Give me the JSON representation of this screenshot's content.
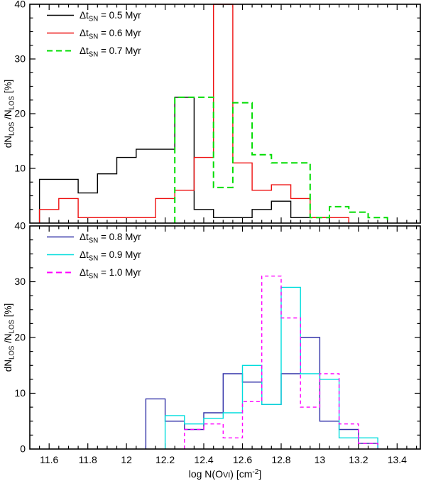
{
  "figure_background": "#ffffff",
  "chart_data": [
    {
      "type": "bar",
      "subtype": "step-histogram",
      "panel": "top",
      "grid": false,
      "legend_position": "top-left-inside",
      "xlim": [
        11.5,
        13.52
      ],
      "ylim": [
        0,
        40
      ],
      "xticks_major": [
        11.6,
        11.8,
        12.0,
        12.2,
        12.4,
        12.6,
        12.8,
        13.0,
        13.2,
        13.4
      ],
      "xtick_labels": [],
      "xtick_minor_step": 0.05,
      "ytick_values": [
        10,
        20,
        30,
        40
      ],
      "ytick_labels": [
        "10",
        "20",
        "30",
        "40"
      ],
      "ytick_minor_step": 2.5,
      "ylabel_parts": [
        {
          "t": "dN"
        },
        {
          "t": "LOS",
          "sub": true
        },
        {
          "t": " /N"
        },
        {
          "t": "LOS",
          "sub": true
        },
        {
          "t": " [%]"
        }
      ],
      "legend": [
        {
          "series_id": "dtsn-0.5",
          "label_text": "Δt_SN = 0.5 Myr",
          "label_parts": [
            {
              "t": "Δt"
            },
            {
              "t": "SN",
              "sub": true
            },
            {
              "t": " = 0.5 Myr"
            }
          ],
          "color": "#000000",
          "style": "solid"
        },
        {
          "series_id": "dtsn-0.6",
          "label_text": "Δt_SN = 0.6 Myr",
          "label_parts": [
            {
              "t": "Δt"
            },
            {
              "t": "SN",
              "sub": true
            },
            {
              "t": " = 0.6 Myr"
            }
          ],
          "color": "#ee1111",
          "style": "solid"
        },
        {
          "series_id": "dtsn-0.7",
          "label_text": "Δt_SN = 0.7 Myr",
          "label_parts": [
            {
              "t": "Δt"
            },
            {
              "t": "SN",
              "sub": true
            },
            {
              "t": " = 0.7 Myr"
            }
          ],
          "color": "#00dd00",
          "style": "dashed"
        }
      ],
      "series": [
        {
          "id": "dtsn-0.5",
          "name": "Δt_SN = 0.5 Myr",
          "color": "#000000",
          "style": "solid",
          "thickness": 1.4,
          "dash": null,
          "bin_start": 11.55,
          "bin_width": 0.1,
          "values": [
            8,
            8,
            5.5,
            9,
            12,
            13.5,
            13.5,
            23,
            2.5,
            1,
            1,
            2.5,
            4,
            1,
            1
          ]
        },
        {
          "id": "dtsn-0.6",
          "name": "Δt_SN = 0.6 Myr",
          "color": "#ee1111",
          "style": "solid",
          "thickness": 1.4,
          "dash": null,
          "bin_start": 11.55,
          "bin_width": 0.1,
          "values": [
            2.5,
            4.5,
            1,
            1,
            1,
            1,
            4.5,
            6,
            12,
            40,
            11,
            6,
            7,
            4.5,
            1,
            1
          ]
        },
        {
          "id": "dtsn-0.7",
          "name": "Δt_SN = 0.7 Myr",
          "color": "#00dd00",
          "style": "dashed",
          "thickness": 2.0,
          "dash": "9,5",
          "bin_start": 12.25,
          "bin_width": 0.1,
          "values": [
            23,
            23,
            6.5,
            22,
            12.5,
            11,
            11,
            1,
            3,
            2,
            1
          ]
        }
      ]
    },
    {
      "type": "bar",
      "subtype": "step-histogram",
      "panel": "bottom",
      "grid": false,
      "legend_position": "top-left-inside",
      "xlim": [
        11.5,
        13.52
      ],
      "ylim": [
        0,
        40
      ],
      "xticks_major": [
        11.6,
        11.8,
        12.0,
        12.2,
        12.4,
        12.6,
        12.8,
        13.0,
        13.2,
        13.4
      ],
      "xtick_labels": [
        "11.6",
        "11.8",
        "12",
        "12.2",
        "12.4",
        "12.6",
        "12.8",
        "13",
        "13.2",
        "13.4"
      ],
      "xtick_minor_step": 0.05,
      "ytick_values": [
        0,
        10,
        20,
        30,
        40
      ],
      "ytick_labels": [
        "0",
        "10",
        "20",
        "30",
        "40"
      ],
      "ytick_minor_step": 2.5,
      "ylabel_parts": [
        {
          "t": "dN"
        },
        {
          "t": "LOS",
          "sub": true
        },
        {
          "t": " /N"
        },
        {
          "t": "LOS",
          "sub": true
        },
        {
          "t": " [%]"
        }
      ],
      "xlabel_text": "log N(OVI) [cm^-2]",
      "xlabel_parts": [
        {
          "t": "log N(O"
        },
        {
          "t": "VI",
          "smallcaps": true
        },
        {
          "t": ") [cm"
        },
        {
          "t": "-2",
          "sup": true
        },
        {
          "t": "]"
        }
      ],
      "legend": [
        {
          "series_id": "dtsn-0.8",
          "label_text": "Δt_SN = 0.8 Myr",
          "label_parts": [
            {
              "t": "Δt"
            },
            {
              "t": "SN",
              "sub": true
            },
            {
              "t": " = 0.8 Myr"
            }
          ],
          "color": "#3232a8",
          "style": "solid"
        },
        {
          "series_id": "dtsn-0.9",
          "label_text": "Δt_SN = 0.9 Myr",
          "label_parts": [
            {
              "t": "Δt"
            },
            {
              "t": "SN",
              "sub": true
            },
            {
              "t": " = 0.9 Myr"
            }
          ],
          "color": "#00dddd",
          "style": "solid"
        },
        {
          "series_id": "dtsn-1.0",
          "label_text": "Δt_SN = 1.0 Myr",
          "label_parts": [
            {
              "t": "Δt"
            },
            {
              "t": "SN",
              "sub": true
            },
            {
              "t": " = 1.0 Myr"
            }
          ],
          "color": "#ff00ff",
          "style": "dashed"
        }
      ],
      "series": [
        {
          "id": "dtsn-0.8",
          "name": "Δt_SN = 0.8 Myr",
          "color": "#3232a8",
          "style": "solid",
          "thickness": 1.4,
          "dash": null,
          "bin_start": 12.1,
          "bin_width": 0.1,
          "values": [
            9,
            5,
            3.5,
            6.5,
            13.5,
            12,
            8,
            13.5,
            20,
            5,
            3.5,
            1
          ]
        },
        {
          "id": "dtsn-0.9",
          "name": "Δt_SN = 0.9 Myr",
          "color": "#00dddd",
          "style": "solid",
          "thickness": 1.4,
          "dash": null,
          "bin_start": 12.2,
          "bin_width": 0.1,
          "values": [
            6,
            4.5,
            5.5,
            6.5,
            15,
            8,
            29,
            13.5,
            12.5,
            2,
            2
          ]
        },
        {
          "id": "dtsn-1.0",
          "name": "Δt_SN = 1.0 Myr",
          "color": "#ff00ff",
          "style": "dashed",
          "thickness": 1.4,
          "dash": "5,4",
          "bin_start": 12.3,
          "bin_width": 0.1,
          "values": [
            3.5,
            4.5,
            2,
            8.5,
            31,
            23.5,
            7.5,
            13.5,
            4.5,
            1
          ]
        }
      ]
    }
  ]
}
